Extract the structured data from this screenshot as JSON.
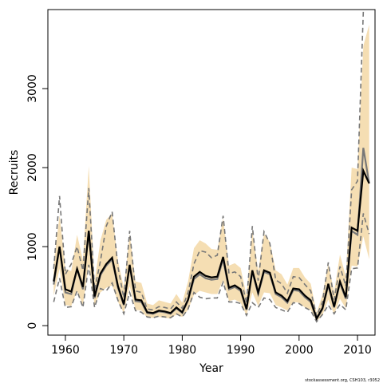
{
  "chart_data": {
    "type": "line",
    "xlabel": "Year",
    "ylabel": "Recruits",
    "xlim": [
      1957,
      2013
    ],
    "ylim": [
      -120,
      4000
    ],
    "x_ticks": [
      1960,
      1970,
      1980,
      1990,
      2000,
      2010
    ],
    "y_ticks": [
      0,
      1000,
      2000,
      3000
    ],
    "footer": "stockassessment.org, CSH103, r3052",
    "colors": {
      "band": "#f5deb3",
      "estimate": "#000000",
      "alt_line": "#777777"
    },
    "x": [
      1958,
      1959,
      1960,
      1961,
      1962,
      1963,
      1964,
      1965,
      1966,
      1967,
      1968,
      1969,
      1970,
      1971,
      1972,
      1973,
      1974,
      1975,
      1976,
      1977,
      1978,
      1979,
      1980,
      1981,
      1982,
      1983,
      1984,
      1985,
      1986,
      1987,
      1988,
      1989,
      1990,
      1991,
      1992,
      1993,
      1994,
      1995,
      1996,
      1997,
      1998,
      1999,
      2000,
      2001,
      2002,
      2003,
      2004,
      2005,
      2006,
      2007,
      2008,
      2009,
      2010,
      2011,
      2012
    ],
    "series": [
      {
        "role": "estimate",
        "values": [
          560,
          1000,
          460,
          430,
          720,
          490,
          1200,
          370,
          660,
          780,
          860,
          500,
          270,
          770,
          330,
          320,
          170,
          160,
          190,
          180,
          160,
          230,
          170,
          330,
          620,
          680,
          630,
          610,
          620,
          870,
          480,
          510,
          460,
          210,
          700,
          420,
          700,
          670,
          420,
          380,
          310,
          470,
          460,
          380,
          320,
          90,
          220,
          530,
          240,
          560,
          360,
          1240,
          1200,
          1960,
          1800
        ]
      },
      {
        "role": "estimate-upper",
        "values": [
          780,
          1400,
          720,
          690,
          1150,
          830,
          2020,
          560,
          1080,
          1340,
          1420,
          820,
          480,
          1160,
          560,
          540,
          280,
          260,
          320,
          300,
          280,
          400,
          290,
          560,
          980,
          1080,
          1040,
          970,
          960,
          1360,
          760,
          790,
          730,
          380,
          1200,
          690,
          1160,
          1060,
          700,
          650,
          520,
          730,
          730,
          610,
          530,
          160,
          390,
          780,
          430,
          900,
          620,
          2000,
          1980,
          3540,
          3810
        ]
      },
      {
        "role": "estimate-lower",
        "values": [
          380,
          720,
          260,
          250,
          440,
          260,
          770,
          260,
          420,
          480,
          510,
          300,
          160,
          500,
          200,
          190,
          100,
          100,
          110,
          100,
          90,
          140,
          110,
          200,
          390,
          440,
          420,
          400,
          400,
          580,
          310,
          330,
          290,
          130,
          420,
          250,
          420,
          410,
          260,
          230,
          190,
          300,
          290,
          230,
          200,
          50,
          130,
          330,
          140,
          340,
          220,
          760,
          750,
          1130,
          840
        ]
      },
      {
        "role": "alt-estimate",
        "values": [
          520,
          1000,
          420,
          400,
          720,
          460,
          1200,
          350,
          640,
          760,
          840,
          480,
          260,
          760,
          310,
          300,
          160,
          150,
          180,
          170,
          150,
          220,
          160,
          320,
          590,
          650,
          600,
          580,
          590,
          840,
          460,
          490,
          440,
          200,
          680,
          400,
          680,
          650,
          400,
          360,
          290,
          450,
          440,
          360,
          300,
          80,
          210,
          510,
          230,
          540,
          340,
          1200,
          1150,
          2250,
          1800
        ]
      },
      {
        "role": "alt-upper",
        "values": [
          720,
          1640,
          650,
          780,
          1000,
          700,
          1740,
          450,
          820,
          1260,
          1440,
          740,
          350,
          1200,
          440,
          420,
          210,
          200,
          240,
          230,
          210,
          300,
          220,
          420,
          780,
          950,
          930,
          860,
          890,
          1390,
          660,
          680,
          620,
          280,
          1260,
          570,
          1190,
          1040,
          580,
          530,
          410,
          620,
          610,
          520,
          440,
          120,
          300,
          800,
          330,
          750,
          500,
          1720,
          1830,
          3980,
          4200
        ]
      },
      {
        "role": "alt-lower",
        "values": [
          300,
          600,
          230,
          240,
          440,
          230,
          770,
          230,
          470,
          440,
          540,
          320,
          150,
          420,
          190,
          170,
          110,
          100,
          120,
          110,
          100,
          150,
          110,
          210,
          420,
          360,
          340,
          350,
          350,
          550,
          300,
          300,
          280,
          130,
          290,
          230,
          350,
          330,
          230,
          200,
          170,
          290,
          280,
          230,
          190,
          50,
          140,
          260,
          150,
          270,
          200,
          720,
          730,
          1420,
          1160
        ]
      }
    ]
  }
}
